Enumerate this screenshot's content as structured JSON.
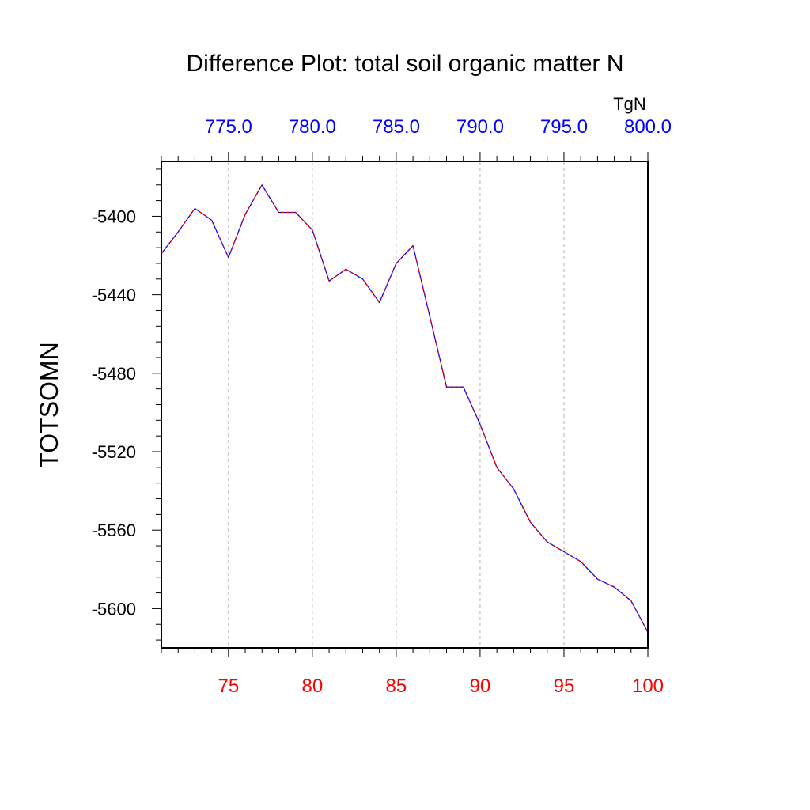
{
  "chart_data": {
    "type": "line",
    "title": "Difference Plot: total soil organic matter N",
    "ylabel": "TOTSOMN",
    "xlabel": "",
    "xlim": [
      71,
      100
    ],
    "ylim": [
      -5620,
      -5372
    ],
    "x_ticks": [
      75,
      80,
      85,
      90,
      95,
      100
    ],
    "x_tick_labels": [
      "75",
      "80",
      "85",
      "90",
      "95",
      "100"
    ],
    "x_tick_color": "#ff0000",
    "top_axis": {
      "units": "TgN",
      "ticks": [
        775,
        780,
        785,
        790,
        795,
        800
      ],
      "tick_labels": [
        "775.0",
        "780.0",
        "785.0",
        "790.0",
        "795.0",
        "800.0"
      ],
      "color": "#0000ff"
    },
    "y_ticks": [
      -5400,
      -5440,
      -5480,
      -5520,
      -5560,
      -5600
    ],
    "y_tick_labels": [
      "-5400",
      "-5440",
      "-5480",
      "-5520",
      "-5560",
      "-5600"
    ],
    "grid": "vertical-dashed",
    "series": [
      {
        "name": "difference",
        "color": "#0000ff",
        "dash_color": "#ff0000",
        "x": [
          71,
          72,
          73,
          74,
          75,
          76,
          77,
          78,
          79,
          80,
          81,
          82,
          83,
          84,
          85,
          86,
          87,
          88,
          89,
          90,
          91,
          92,
          93,
          94,
          95,
          96,
          97,
          98,
          99,
          100
        ],
        "y": [
          -5419,
          -5408,
          -5396,
          -5402,
          -5421,
          -5399,
          -5384,
          -5398,
          -5398,
          -5407,
          -5433,
          -5427,
          -5432,
          -5444,
          -5424,
          -5415,
          -5451,
          -5487,
          -5487,
          -5506,
          -5528,
          -5539,
          -5556,
          -5566,
          -5571,
          -5576,
          -5585,
          -5589,
          -5596,
          -5612
        ]
      }
    ]
  }
}
